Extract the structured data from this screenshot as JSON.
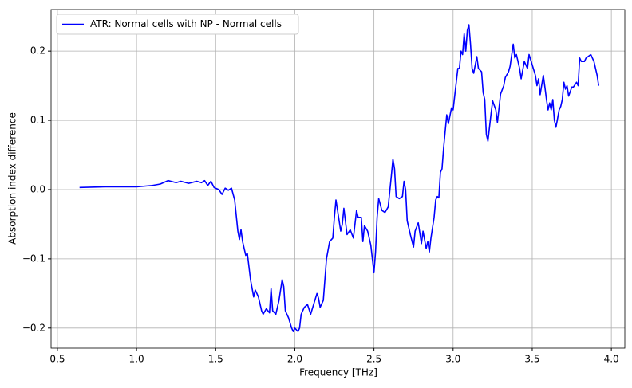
{
  "chart_data": {
    "type": "line",
    "xlabel": "Frequency [THz]",
    "ylabel": "Absorption index difference",
    "x": [
      0.64,
      0.8,
      1.0,
      1.1,
      1.15,
      1.2,
      1.25,
      1.28,
      1.33,
      1.38,
      1.41,
      1.43,
      1.45,
      1.47,
      1.49,
      1.52,
      1.54,
      1.56,
      1.58,
      1.6,
      1.62,
      1.64,
      1.65,
      1.66,
      1.67,
      1.69,
      1.7,
      1.72,
      1.74,
      1.75,
      1.77,
      1.79,
      1.8,
      1.82,
      1.84,
      1.85,
      1.86,
      1.88,
      1.9,
      1.92,
      1.93,
      1.94,
      1.96,
      1.98,
      1.99,
      2.0,
      2.02,
      2.03,
      2.04,
      2.06,
      2.08,
      2.1,
      2.12,
      2.14,
      2.15,
      2.16,
      2.18,
      2.2,
      2.22,
      2.24,
      2.25,
      2.26,
      2.27,
      2.29,
      2.3,
      2.31,
      2.33,
      2.35,
      2.37,
      2.38,
      2.39,
      2.4,
      2.42,
      2.43,
      2.44,
      2.46,
      2.48,
      2.49,
      2.5,
      2.51,
      2.52,
      2.53,
      2.55,
      2.57,
      2.59,
      2.61,
      2.62,
      2.63,
      2.64,
      2.66,
      2.68,
      2.69,
      2.7,
      2.71,
      2.73,
      2.75,
      2.76,
      2.78,
      2.8,
      2.81,
      2.83,
      2.84,
      2.85,
      2.86,
      2.88,
      2.89,
      2.9,
      2.91,
      2.92,
      2.93,
      2.94,
      2.96,
      2.97,
      2.99,
      3.0,
      3.01,
      3.03,
      3.04,
      3.05,
      3.06,
      3.07,
      3.08,
      3.09,
      3.1,
      3.11,
      3.12,
      3.13,
      3.15,
      3.16,
      3.18,
      3.19,
      3.2,
      3.21,
      3.22,
      3.24,
      3.25,
      3.27,
      3.28,
      3.3,
      3.32,
      3.33,
      3.35,
      3.36,
      3.38,
      3.39,
      3.4,
      3.42,
      3.43,
      3.45,
      3.47,
      3.48,
      3.5,
      3.52,
      3.53,
      3.54,
      3.55,
      3.57,
      3.58,
      3.59,
      3.6,
      3.61,
      3.62,
      3.63,
      3.64,
      3.65,
      3.67,
      3.68,
      3.69,
      3.7,
      3.71,
      3.72,
      3.73,
      3.75,
      3.76,
      3.78,
      3.79,
      3.8,
      3.81,
      3.83,
      3.84,
      3.87,
      3.89,
      3.91,
      3.92
    ],
    "series": [
      {
        "name": "ATR: Normal cells with NP - Normal cells",
        "color": "#0000ff",
        "values": [
          0.003,
          0.004,
          0.004,
          0.006,
          0.008,
          0.013,
          0.01,
          0.012,
          0.009,
          0.012,
          0.01,
          0.013,
          0.006,
          0.012,
          0.003,
          0.0,
          -0.007,
          0.002,
          -0.001,
          0.002,
          -0.015,
          -0.06,
          -0.072,
          -0.058,
          -0.075,
          -0.095,
          -0.092,
          -0.13,
          -0.155,
          -0.145,
          -0.155,
          -0.175,
          -0.18,
          -0.172,
          -0.178,
          -0.143,
          -0.175,
          -0.18,
          -0.16,
          -0.13,
          -0.14,
          -0.175,
          -0.185,
          -0.2,
          -0.205,
          -0.2,
          -0.205,
          -0.2,
          -0.18,
          -0.17,
          -0.166,
          -0.18,
          -0.165,
          -0.15,
          -0.157,
          -0.17,
          -0.16,
          -0.1,
          -0.075,
          -0.07,
          -0.04,
          -0.015,
          -0.03,
          -0.06,
          -0.05,
          -0.027,
          -0.065,
          -0.058,
          -0.07,
          -0.05,
          -0.03,
          -0.04,
          -0.04,
          -0.075,
          -0.052,
          -0.06,
          -0.08,
          -0.1,
          -0.12,
          -0.09,
          -0.04,
          -0.013,
          -0.03,
          -0.033,
          -0.025,
          0.02,
          0.044,
          0.03,
          -0.01,
          -0.013,
          -0.01,
          0.012,
          0.0,
          -0.045,
          -0.065,
          -0.083,
          -0.06,
          -0.048,
          -0.078,
          -0.06,
          -0.085,
          -0.075,
          -0.09,
          -0.07,
          -0.04,
          -0.015,
          -0.01,
          -0.012,
          0.025,
          0.03,
          0.06,
          0.108,
          0.095,
          0.118,
          0.115,
          0.135,
          0.175,
          0.175,
          0.2,
          0.195,
          0.225,
          0.2,
          0.23,
          0.238,
          0.21,
          0.175,
          0.168,
          0.192,
          0.175,
          0.17,
          0.14,
          0.13,
          0.08,
          0.07,
          0.11,
          0.128,
          0.115,
          0.097,
          0.138,
          0.15,
          0.162,
          0.17,
          0.178,
          0.21,
          0.19,
          0.195,
          0.175,
          0.16,
          0.185,
          0.175,
          0.195,
          0.18,
          0.165,
          0.15,
          0.16,
          0.137,
          0.165,
          0.148,
          0.13,
          0.115,
          0.125,
          0.115,
          0.13,
          0.1,
          0.09,
          0.115,
          0.12,
          0.13,
          0.155,
          0.145,
          0.15,
          0.135,
          0.148,
          0.148,
          0.155,
          0.15,
          0.19,
          0.185,
          0.185,
          0.19,
          0.195,
          0.185,
          0.165,
          0.15
        ]
      }
    ],
    "xlim": [
      0.46,
      4.085
    ],
    "ylim": [
      -0.229,
      0.26
    ],
    "xticks": [
      {
        "value": 0.5,
        "label": "0.5"
      },
      {
        "value": 1.0,
        "label": "1.0"
      },
      {
        "value": 1.5,
        "label": "1.5"
      },
      {
        "value": 2.0,
        "label": "2.0"
      },
      {
        "value": 2.5,
        "label": "2.5"
      },
      {
        "value": 3.0,
        "label": "3.0"
      },
      {
        "value": 3.5,
        "label": "3.5"
      },
      {
        "value": 4.0,
        "label": "4.0"
      }
    ],
    "yticks": [
      {
        "value": -0.2,
        "label": "−0.2"
      },
      {
        "value": -0.1,
        "label": "−0.1"
      },
      {
        "value": 0.0,
        "label": "0.0"
      },
      {
        "value": 0.1,
        "label": "0.1"
      },
      {
        "value": 0.2,
        "label": "0.2"
      }
    ],
    "grid": true,
    "legend": "upper-left"
  }
}
